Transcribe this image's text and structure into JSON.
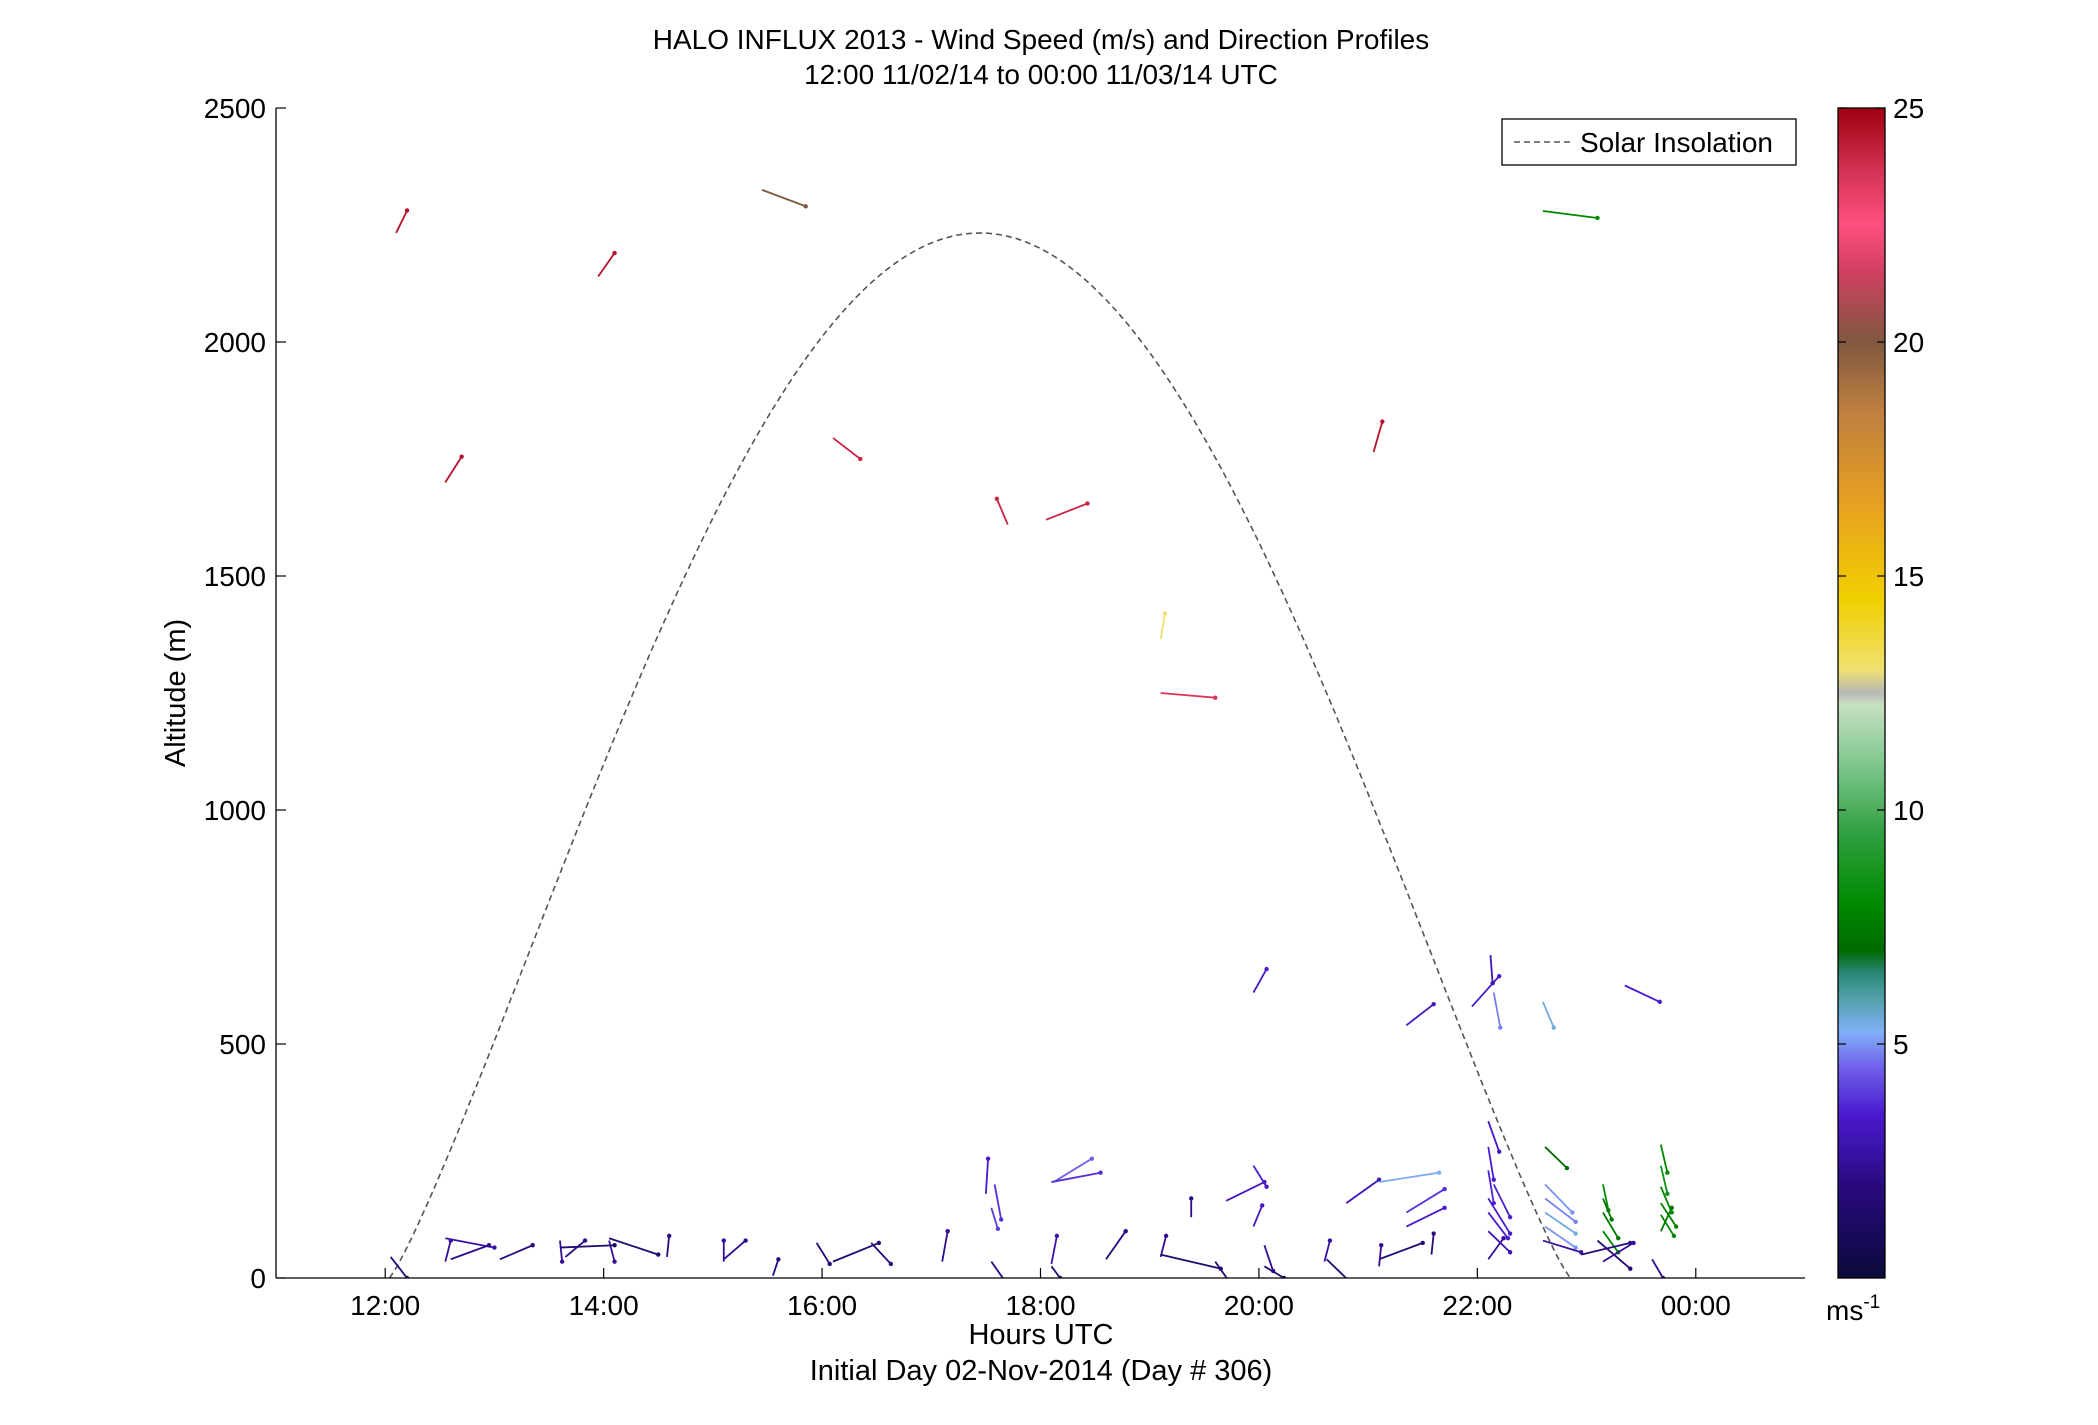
{
  "chart_data": {
    "type": "vector",
    "title": "HALO INFLUX 2013 - Wind Speed (m/s) and Direction Profiles",
    "subtitle": "12:00 11/02/14 to 00:00 11/03/14  UTC",
    "xlabel": "Hours UTC",
    "xlabel2": "Initial Day 02-Nov-2014 (Day # 306)",
    "ylabel": "Altitude (m)",
    "xlim": [
      11.0,
      25.0
    ],
    "ylim": [
      0,
      2500
    ],
    "x_ticks": [
      12,
      14,
      16,
      18,
      20,
      22,
      24
    ],
    "x_tick_labels": [
      "12:00",
      "14:00",
      "16:00",
      "18:00",
      "20:00",
      "22:00",
      "00:00"
    ],
    "y_ticks": [
      0,
      500,
      1000,
      1500,
      2000,
      2500
    ],
    "y_tick_labels": [
      "0",
      "500",
      "1000",
      "1500",
      "2000",
      "2500"
    ],
    "legend": {
      "position": "top-right",
      "entries": [
        "Solar Insolation"
      ]
    },
    "colorbar": {
      "unit": "ms",
      "unit_exponent": "-1",
      "range": [
        0,
        25
      ],
      "ticks": [
        5,
        10,
        15,
        20,
        25
      ],
      "tick_labels": [
        "5",
        "10",
        "15",
        "20",
        "25"
      ],
      "colormap": [
        [
          0.0,
          "#0a0a3a"
        ],
        [
          0.08,
          "#2a0a80"
        ],
        [
          0.14,
          "#4a1ad0"
        ],
        [
          0.18,
          "#7060e8"
        ],
        [
          0.21,
          "#80b0f8"
        ],
        [
          0.24,
          "#50a0a8"
        ],
        [
          0.26,
          "#2a8878"
        ],
        [
          0.28,
          "#006a00"
        ],
        [
          0.32,
          "#008a00"
        ],
        [
          0.38,
          "#30a040"
        ],
        [
          0.44,
          "#80c890"
        ],
        [
          0.49,
          "#c8e0c0"
        ],
        [
          0.5,
          "#b8b8b8"
        ],
        [
          0.52,
          "#f0e070"
        ],
        [
          0.58,
          "#f0d000"
        ],
        [
          0.66,
          "#e8a020"
        ],
        [
          0.74,
          "#c08040"
        ],
        [
          0.8,
          "#805840"
        ],
        [
          0.86,
          "#d04060"
        ],
        [
          0.9,
          "#ff5080"
        ],
        [
          0.95,
          "#d03050"
        ],
        [
          1.0,
          "#a00010"
        ]
      ]
    },
    "solar_curve": {
      "start_hour": 12.04,
      "peak_hour": 17.45,
      "end_hour": 22.85,
      "peak_altitude": 2233
    },
    "vectors": [
      {
        "x": 12.1,
        "y": 2233,
        "u": 0.1,
        "v": 48,
        "speed": 24.5
      },
      {
        "x": 12.55,
        "y": 1700,
        "u": 0.15,
        "v": 55,
        "speed": 24.5
      },
      {
        "x": 13.95,
        "y": 2140,
        "u": 0.15,
        "v": 50,
        "speed": 24.5
      },
      {
        "x": 15.45,
        "y": 2325,
        "u": 0.4,
        "v": -35,
        "speed": 20.0
      },
      {
        "x": 16.1,
        "y": 1795,
        "u": 0.25,
        "v": -45,
        "speed": 24.0
      },
      {
        "x": 17.7,
        "y": 1610,
        "u": -0.1,
        "v": 55,
        "speed": 24.0
      },
      {
        "x": 18.05,
        "y": 1620,
        "u": 0.38,
        "v": 35,
        "speed": 24.0
      },
      {
        "x": 19.1,
        "y": 1365,
        "u": 0.04,
        "v": 55,
        "speed": 13.0
      },
      {
        "x": 19.1,
        "y": 1250,
        "u": 0.5,
        "v": -10,
        "speed": 23.5
      },
      {
        "x": 21.05,
        "y": 1765,
        "u": 0.08,
        "v": 65,
        "speed": 24.5
      },
      {
        "x": 22.6,
        "y": 2280,
        "u": 0.5,
        "v": -15,
        "speed": 8.0
      },
      {
        "x": 19.95,
        "y": 610,
        "u": 0.12,
        "v": 50,
        "speed": 3.5
      },
      {
        "x": 21.35,
        "y": 540,
        "u": 0.25,
        "v": 45,
        "speed": 3.2
      },
      {
        "x": 21.95,
        "y": 580,
        "u": 0.25,
        "v": 65,
        "speed": 3.5
      },
      {
        "x": 22.12,
        "y": 690,
        "u": 0.02,
        "v": -60,
        "speed": 3.0
      },
      {
        "x": 22.15,
        "y": 610,
        "u": 0.06,
        "v": -75,
        "speed": 4.8
      },
      {
        "x": 22.6,
        "y": 590,
        "u": 0.1,
        "v": -55,
        "speed": 5.5
      },
      {
        "x": 23.35,
        "y": 625,
        "u": 0.32,
        "v": -35,
        "speed": 3.5
      },
      {
        "x": 17.5,
        "y": 180,
        "u": 0.02,
        "v": 75,
        "speed": 3.5
      },
      {
        "x": 17.58,
        "y": 200,
        "u": 0.06,
        "v": -75,
        "speed": 3.8
      },
      {
        "x": 17.55,
        "y": 150,
        "u": 0.06,
        "v": -45,
        "speed": 4.0
      },
      {
        "x": 18.12,
        "y": 205,
        "u": 0.35,
        "v": 50,
        "speed": 4.5
      },
      {
        "x": 18.1,
        "y": 205,
        "u": 0.45,
        "v": 20,
        "speed": 3.8
      },
      {
        "x": 19.38,
        "y": 130,
        "u": 0.0,
        "v": 40,
        "speed": 2.2
      },
      {
        "x": 19.7,
        "y": 165,
        "u": 0.35,
        "v": 40,
        "speed": 3.3
      },
      {
        "x": 19.95,
        "y": 240,
        "u": 0.12,
        "v": -45,
        "speed": 3.5
      },
      {
        "x": 19.95,
        "y": 110,
        "u": 0.08,
        "v": 45,
        "speed": 3.2
      },
      {
        "x": 20.8,
        "y": 160,
        "u": 0.3,
        "v": 50,
        "speed": 3.0
      },
      {
        "x": 21.1,
        "y": 205,
        "u": 0.55,
        "v": 20,
        "speed": 5.2
      },
      {
        "x": 21.35,
        "y": 110,
        "u": 0.35,
        "v": 40,
        "speed": 3.5
      },
      {
        "x": 21.35,
        "y": 140,
        "u": 0.35,
        "v": 50,
        "speed": 3.8
      },
      {
        "x": 22.1,
        "y": 335,
        "u": 0.1,
        "v": -65,
        "speed": 3.3
      },
      {
        "x": 22.1,
        "y": 280,
        "u": 0.05,
        "v": -70,
        "speed": 3.5
      },
      {
        "x": 22.1,
        "y": 230,
        "u": 0.05,
        "v": -70,
        "speed": 3.6
      },
      {
        "x": 22.15,
        "y": 200,
        "u": 0.15,
        "v": -70,
        "speed": 3.6
      },
      {
        "x": 22.1,
        "y": 170,
        "u": 0.2,
        "v": -75,
        "speed": 3.4
      },
      {
        "x": 22.1,
        "y": 140,
        "u": 0.18,
        "v": -55,
        "speed": 3.5
      },
      {
        "x": 22.1,
        "y": 100,
        "u": 0.2,
        "v": -45,
        "speed": 3.0
      },
      {
        "x": 22.1,
        "y": 40,
        "u": 0.14,
        "v": 45,
        "speed": 2.5
      },
      {
        "x": 22.62,
        "y": 280,
        "u": 0.2,
        "v": -45,
        "speed": 7.0
      },
      {
        "x": 22.62,
        "y": 200,
        "u": 0.25,
        "v": -60,
        "speed": 5.0
      },
      {
        "x": 22.62,
        "y": 170,
        "u": 0.28,
        "v": -50,
        "speed": 4.8
      },
      {
        "x": 22.62,
        "y": 140,
        "u": 0.28,
        "v": -45,
        "speed": 5.5
      },
      {
        "x": 22.62,
        "y": 110,
        "u": 0.28,
        "v": -45,
        "speed": 5.0
      },
      {
        "x": 23.15,
        "y": 200,
        "u": 0.05,
        "v": -55,
        "speed": 8.0
      },
      {
        "x": 23.15,
        "y": 170,
        "u": 0.08,
        "v": -45,
        "speed": 7.5
      },
      {
        "x": 23.15,
        "y": 140,
        "u": 0.14,
        "v": -55,
        "speed": 7.5
      },
      {
        "x": 23.15,
        "y": 100,
        "u": 0.14,
        "v": -45,
        "speed": 8.0
      },
      {
        "x": 23.68,
        "y": 285,
        "u": 0.06,
        "v": -60,
        "speed": 8.0
      },
      {
        "x": 23.68,
        "y": 240,
        "u": 0.06,
        "v": -60,
        "speed": 8.5
      },
      {
        "x": 23.68,
        "y": 195,
        "u": 0.1,
        "v": -55,
        "speed": 8.0
      },
      {
        "x": 23.68,
        "y": 160,
        "u": 0.14,
        "v": -50,
        "speed": 7.8
      },
      {
        "x": 23.68,
        "y": 135,
        "u": 0.12,
        "v": -45,
        "speed": 8.0
      },
      {
        "x": 23.68,
        "y": 100,
        "u": 0.1,
        "v": 50,
        "speed": 7.5
      },
      {
        "x": 12.05,
        "y": 45,
        "u": 0.15,
        "v": -45,
        "speed": 1.8
      },
      {
        "x": 12.55,
        "y": 35,
        "u": 0.05,
        "v": 45,
        "speed": 2.5
      },
      {
        "x": 12.55,
        "y": 85,
        "u": 0.45,
        "v": -20,
        "speed": 2.8
      },
      {
        "x": 12.6,
        "y": 40,
        "u": 0.35,
        "v": 30,
        "speed": 2.2
      },
      {
        "x": 13.05,
        "y": 40,
        "u": 0.3,
        "v": 30,
        "speed": 2.0
      },
      {
        "x": 13.6,
        "y": 80,
        "u": 0.02,
        "v": -45,
        "speed": 2.5
      },
      {
        "x": 13.6,
        "y": 65,
        "u": 0.5,
        "v": 5,
        "speed": 1.5
      },
      {
        "x": 13.65,
        "y": 45,
        "u": 0.18,
        "v": 35,
        "speed": 2.0
      },
      {
        "x": 14.05,
        "y": 80,
        "u": 0.05,
        "v": -45,
        "speed": 2.5
      },
      {
        "x": 14.05,
        "y": 85,
        "u": 0.45,
        "v": -35,
        "speed": 1.5
      },
      {
        "x": 14.58,
        "y": 45,
        "u": 0.02,
        "v": 45,
        "speed": 2.0
      },
      {
        "x": 15.1,
        "y": 35,
        "u": 0.0,
        "v": 45,
        "speed": 2.5
      },
      {
        "x": 15.1,
        "y": 40,
        "u": 0.2,
        "v": 40,
        "speed": 2.2
      },
      {
        "x": 15.55,
        "y": 5,
        "u": 0.05,
        "v": 35,
        "speed": 2.0
      },
      {
        "x": 15.95,
        "y": 75,
        "u": 0.12,
        "v": -45,
        "speed": 1.8
      },
      {
        "x": 16.1,
        "y": 35,
        "u": 0.42,
        "v": 40,
        "speed": 1.6
      },
      {
        "x": 16.45,
        "y": 75,
        "u": 0.18,
        "v": -45,
        "speed": 2.0
      },
      {
        "x": 17.1,
        "y": 35,
        "u": 0.05,
        "v": 65,
        "speed": 2.2
      },
      {
        "x": 17.55,
        "y": 35,
        "u": 0.12,
        "v": -40,
        "speed": 2.0
      },
      {
        "x": 18.1,
        "y": 30,
        "u": 0.05,
        "v": 60,
        "speed": 2.8
      },
      {
        "x": 18.1,
        "y": 25,
        "u": 0.08,
        "v": -25,
        "speed": 1.8
      },
      {
        "x": 18.6,
        "y": 40,
        "u": 0.18,
        "v": 60,
        "speed": 1.8
      },
      {
        "x": 19.1,
        "y": 45,
        "u": 0.05,
        "v": 45,
        "speed": 2.3
      },
      {
        "x": 19.1,
        "y": 50,
        "u": 0.55,
        "v": -30,
        "speed": 1.5
      },
      {
        "x": 19.6,
        "y": 35,
        "u": 0.12,
        "v": -40,
        "speed": 1.6
      },
      {
        "x": 20.05,
        "y": 70,
        "u": 0.08,
        "v": -55,
        "speed": 2.2
      },
      {
        "x": 20.05,
        "y": 25,
        "u": 0.18,
        "v": -25,
        "speed": 1.6
      },
      {
        "x": 20.6,
        "y": 35,
        "u": 0.05,
        "v": 45,
        "speed": 2.6
      },
      {
        "x": 20.62,
        "y": 40,
        "u": 0.2,
        "v": -45,
        "speed": 1.5
      },
      {
        "x": 21.1,
        "y": 40,
        "u": 0.4,
        "v": 35,
        "speed": 1.6
      },
      {
        "x": 21.1,
        "y": 25,
        "u": 0.02,
        "v": 45,
        "speed": 2.4
      },
      {
        "x": 21.58,
        "y": 50,
        "u": 0.02,
        "v": 45,
        "speed": 2.0
      },
      {
        "x": 22.6,
        "y": 80,
        "u": 0.35,
        "v": -25,
        "speed": 2.6
      },
      {
        "x": 22.95,
        "y": 50,
        "u": 0.45,
        "v": 25,
        "speed": 2.0
      },
      {
        "x": 23.1,
        "y": 80,
        "u": 0.3,
        "v": -60,
        "speed": 1.6
      },
      {
        "x": 23.15,
        "y": 35,
        "u": 0.28,
        "v": 40,
        "speed": 2.5
      },
      {
        "x": 23.6,
        "y": 40,
        "u": 0.1,
        "v": -40,
        "speed": 2.2
      }
    ]
  }
}
